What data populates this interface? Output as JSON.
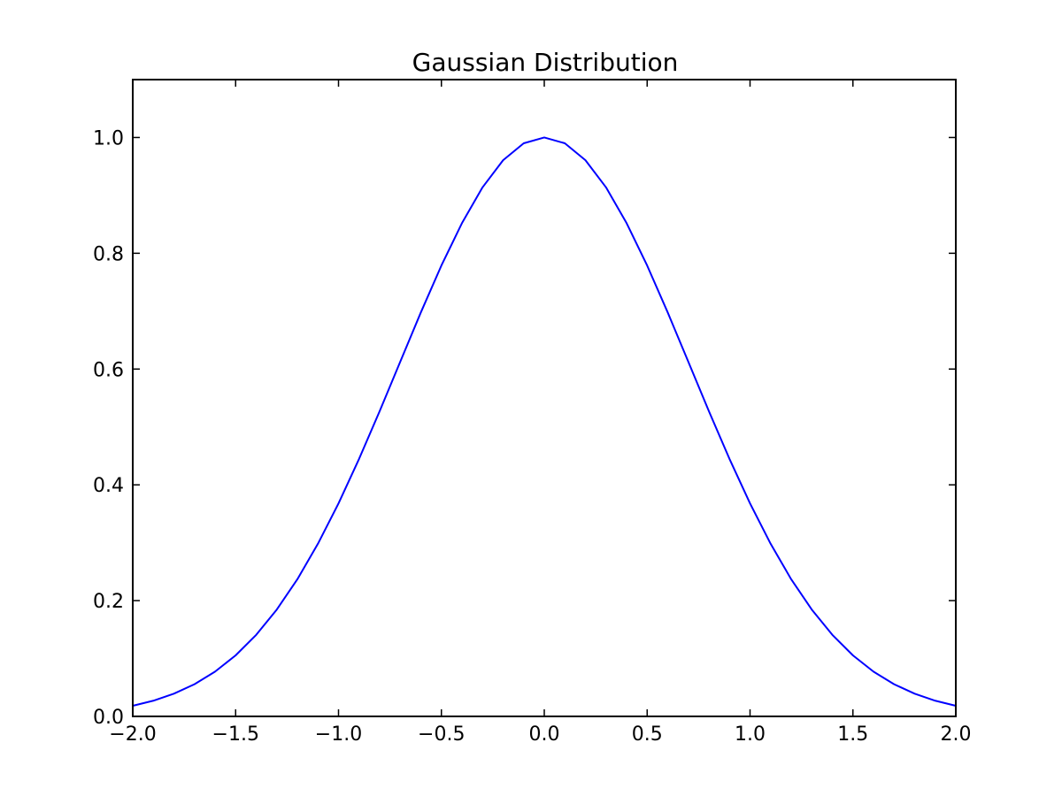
{
  "chart_data": {
    "type": "line",
    "title": "Gaussian Distribution",
    "xlabel": "",
    "ylabel": "",
    "xlim": [
      -2.0,
      2.0
    ],
    "ylim": [
      0.0,
      1.1
    ],
    "x_ticks": [
      -2.0,
      -1.5,
      -1.0,
      -0.5,
      0.0,
      0.5,
      1.0,
      1.5,
      2.0
    ],
    "x_tick_labels": [
      "−2.0",
      "−1.5",
      "−1.0",
      "−0.5",
      "0.0",
      "0.5",
      "1.0",
      "1.5",
      "2.0"
    ],
    "y_ticks": [
      0.0,
      0.2,
      0.4,
      0.6,
      0.8,
      1.0
    ],
    "y_tick_labels": [
      "0.0",
      "0.2",
      "0.4",
      "0.6",
      "0.8",
      "1.0"
    ],
    "grid": false,
    "legend": "none",
    "series": [
      {
        "color": "#0000ff",
        "x": [
          -2.0,
          -1.9,
          -1.8,
          -1.7,
          -1.6,
          -1.5,
          -1.4,
          -1.3,
          -1.2,
          -1.1,
          -1.0,
          -0.9,
          -0.8,
          -0.7,
          -0.6,
          -0.5,
          -0.4,
          -0.3,
          -0.2,
          -0.1,
          0.0,
          0.1,
          0.2,
          0.3,
          0.4,
          0.5,
          0.6,
          0.7,
          0.8,
          0.9,
          1.0,
          1.1,
          1.2,
          1.3,
          1.4,
          1.5,
          1.6,
          1.7,
          1.8,
          1.9,
          2.0
        ],
        "y": [
          0.0183,
          0.0271,
          0.0392,
          0.0556,
          0.0773,
          0.1054,
          0.1409,
          0.1845,
          0.2369,
          0.2982,
          0.3679,
          0.4449,
          0.5273,
          0.6126,
          0.6977,
          0.7788,
          0.8521,
          0.9139,
          0.9608,
          0.99,
          1.0,
          0.99,
          0.9608,
          0.9139,
          0.8521,
          0.7788,
          0.6977,
          0.6126,
          0.5273,
          0.4449,
          0.3679,
          0.2982,
          0.2369,
          0.1845,
          0.1409,
          0.1054,
          0.0773,
          0.0556,
          0.0392,
          0.0271,
          0.0183
        ]
      }
    ]
  }
}
